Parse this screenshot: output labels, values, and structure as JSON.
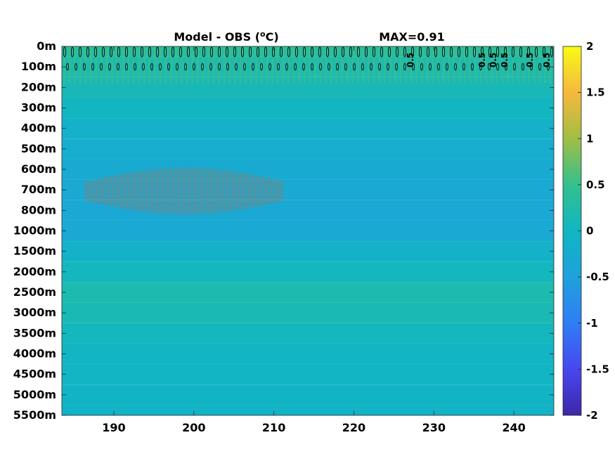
{
  "chart_data": {
    "type": "heatmap",
    "title": "Model - OBS (",
    "title_sup": "o",
    "title_unit": "C)",
    "max_label": "MAX=0.91",
    "xlim": [
      183.5,
      245
    ],
    "x_ticks": [
      190,
      200,
      210,
      220,
      230,
      240
    ],
    "y_ticks": [
      "0m",
      "100m",
      "200m",
      "300m",
      "400m",
      "500m",
      "600m",
      "700m",
      "800m",
      "1000m",
      "1500m",
      "2000m",
      "2500m",
      "3000m",
      "3500m",
      "4000m",
      "4500m",
      "5000m",
      "5500m"
    ],
    "colorbar": {
      "range": [
        -2,
        2
      ],
      "ticks": [
        2,
        1.5,
        1,
        0.5,
        0,
        -0.5,
        -1,
        -1.5,
        -2
      ],
      "colormap": "parula"
    },
    "depth_profile": [
      0.35,
      0.2,
      0.12,
      0.02,
      -0.12,
      -0.22,
      -0.28,
      -0.32,
      -0.34,
      -0.3,
      -0.1,
      0.05,
      0.18,
      0.14,
      0.05,
      -0.02,
      -0.02,
      -0.04,
      -0.08
    ],
    "contour_labels": [
      "0.5",
      "0.5",
      "0.5",
      "0.5",
      "0.5",
      "0.5"
    ]
  }
}
